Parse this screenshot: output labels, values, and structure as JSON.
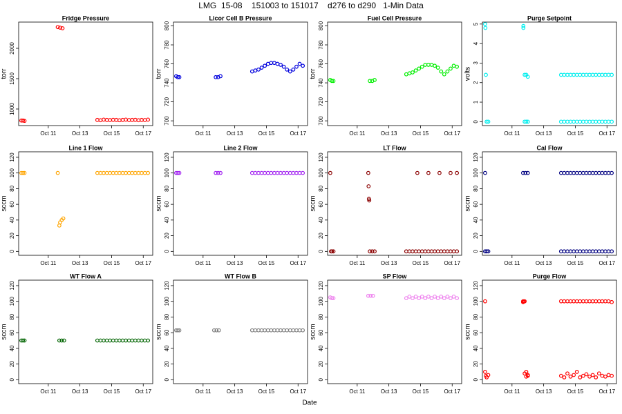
{
  "title": "LMG  15-08    151003 to 151017    d276 to d290   1-Min Data",
  "xlabel": "Date",
  "chart_data": [
    {
      "type": "scatter",
      "title": "Fridge Pressure",
      "ylabel": "torr",
      "color": "#ff0000",
      "xlim": [
        9.13,
        17.6
      ],
      "xticks": [
        {
          "value": 11,
          "label": "Oct 11"
        },
        {
          "value": 13,
          "label": "Oct 13"
        },
        {
          "value": 15,
          "label": "Oct 15"
        },
        {
          "value": 17,
          "label": "Oct 17"
        }
      ],
      "ylim": [
        727,
        2432
      ],
      "yticks": [
        1000,
        1500,
        2000
      ],
      "x": [
        9.3,
        9.4,
        9.5,
        11.6,
        11.75,
        11.9,
        14.1,
        14.3,
        14.5,
        14.7,
        14.9,
        15.1,
        15.3,
        15.5,
        15.7,
        15.9,
        16.1,
        16.3,
        16.5,
        16.7,
        16.9,
        17.1,
        17.3
      ],
      "values": [
        810,
        810,
        805,
        2350,
        2340,
        2330,
        820,
        815,
        825,
        820,
        818,
        822,
        820,
        815,
        820,
        825,
        818,
        820,
        822,
        815,
        820,
        818,
        825
      ]
    },
    {
      "type": "scatter",
      "title": "Licor Cell B Pressure",
      "ylabel": "torr",
      "color": "#0000dd",
      "xlim": [
        9.13,
        17.6
      ],
      "xticks": [
        {
          "value": 11,
          "label": "Oct 11"
        },
        {
          "value": 13,
          "label": "Oct 13"
        },
        {
          "value": 15,
          "label": "Oct 15"
        },
        {
          "value": 17,
          "label": "Oct 17"
        }
      ],
      "ylim": [
        695,
        804
      ],
      "yticks": [
        700,
        720,
        740,
        760,
        780,
        800
      ],
      "x": [
        9.3,
        9.4,
        9.5,
        11.8,
        11.95,
        12.1,
        14.1,
        14.3,
        14.5,
        14.7,
        14.9,
        15.1,
        15.3,
        15.5,
        15.7,
        15.9,
        16.1,
        16.3,
        16.5,
        16.7,
        16.9,
        17.1,
        17.3
      ],
      "values": [
        747,
        746,
        746,
        746,
        746,
        747,
        752,
        753,
        754,
        756,
        758,
        760,
        761,
        761,
        760,
        759,
        757,
        754,
        752,
        754,
        757,
        760,
        758
      ]
    },
    {
      "type": "scatter",
      "title": "Fuel Cell Pressure",
      "ylabel": "torr",
      "color": "#00ee00",
      "xlim": [
        9.13,
        17.6
      ],
      "xticks": [
        {
          "value": 11,
          "label": "Oct 11"
        },
        {
          "value": 13,
          "label": "Oct 13"
        },
        {
          "value": 15,
          "label": "Oct 15"
        },
        {
          "value": 17,
          "label": "Oct 17"
        }
      ],
      "ylim": [
        695,
        804
      ],
      "yticks": [
        700,
        720,
        740,
        760,
        780,
        800
      ],
      "x": [
        9.3,
        9.4,
        9.5,
        11.8,
        11.95,
        12.1,
        14.1,
        14.3,
        14.5,
        14.7,
        14.9,
        15.1,
        15.3,
        15.5,
        15.7,
        15.9,
        16.1,
        16.3,
        16.5,
        16.7,
        16.9,
        17.1,
        17.3
      ],
      "values": [
        743,
        742,
        742,
        742,
        742,
        743,
        749,
        750,
        751,
        753,
        755,
        757,
        759,
        759,
        759,
        758,
        756,
        752,
        749,
        752,
        755,
        758,
        757
      ]
    },
    {
      "type": "scatter",
      "title": "Purge Setpoint",
      "ylabel": "volts",
      "color": "#00eeee",
      "xlim": [
        9.13,
        17.6
      ],
      "xticks": [
        {
          "value": 11,
          "label": "Oct 11"
        },
        {
          "value": 13,
          "label": "Oct 13"
        },
        {
          "value": 15,
          "label": "Oct 15"
        },
        {
          "value": 17,
          "label": "Oct 17"
        }
      ],
      "ylim": [
        -0.2,
        5.1
      ],
      "yticks": [
        0,
        1,
        2,
        3,
        4,
        5
      ],
      "x": [
        9.3,
        9.32,
        9.35,
        9.4,
        9.5,
        11.72,
        11.72,
        11.8,
        11.9,
        12.0,
        11.8,
        11.9,
        12.0,
        14.1,
        14.3,
        14.5,
        14.7,
        14.9,
        15.1,
        15.3,
        15.5,
        15.7,
        15.9,
        16.1,
        16.3,
        16.5,
        16.7,
        16.9,
        17.1,
        17.3,
        14.1,
        14.3,
        14.5,
        14.7,
        14.9,
        15.1,
        15.3,
        15.5,
        15.7,
        15.9,
        16.1,
        16.3,
        16.5,
        16.7,
        16.9,
        17.1,
        17.3
      ],
      "values": [
        5,
        4.8,
        2.4,
        0,
        0,
        4.9,
        4.8,
        2.4,
        2.4,
        2.3,
        0,
        0,
        0,
        2.4,
        2.4,
        2.4,
        2.4,
        2.4,
        2.4,
        2.4,
        2.4,
        2.4,
        2.4,
        2.4,
        2.4,
        2.4,
        2.4,
        2.4,
        2.4,
        2.4,
        0,
        0,
        0,
        0,
        0,
        0,
        0,
        0,
        0,
        0,
        0,
        0,
        0,
        0,
        0,
        0,
        0
      ]
    },
    {
      "type": "scatter",
      "title": "Line 1 Flow",
      "ylabel": "sccm",
      "color": "#ffa500",
      "xlim": [
        9.13,
        17.6
      ],
      "xticks": [
        {
          "value": 11,
          "label": "Oct 11"
        },
        {
          "value": 13,
          "label": "Oct 13"
        },
        {
          "value": 15,
          "label": "Oct 15"
        },
        {
          "value": 17,
          "label": "Oct 17"
        }
      ],
      "ylim": [
        -5,
        127
      ],
      "yticks": [
        0,
        20,
        40,
        60,
        80,
        100,
        120
      ],
      "x": [
        9.3,
        9.4,
        9.5,
        11.6,
        11.7,
        11.75,
        11.85,
        11.95,
        14.1,
        14.3,
        14.5,
        14.7,
        14.9,
        15.1,
        15.3,
        15.5,
        15.7,
        15.9,
        16.1,
        16.3,
        16.5,
        16.7,
        16.9,
        17.1,
        17.3
      ],
      "values": [
        100,
        100,
        100,
        100,
        33,
        37,
        40,
        42,
        100,
        100,
        100,
        100,
        100,
        100,
        100,
        100,
        100,
        100,
        100,
        100,
        100,
        100,
        100,
        100,
        100
      ]
    },
    {
      "type": "scatter",
      "title": "Line 2 Flow",
      "ylabel": "sccm",
      "color": "#a020f0",
      "xlim": [
        9.13,
        17.6
      ],
      "xticks": [
        {
          "value": 11,
          "label": "Oct 11"
        },
        {
          "value": 13,
          "label": "Oct 13"
        },
        {
          "value": 15,
          "label": "Oct 15"
        },
        {
          "value": 17,
          "label": "Oct 17"
        }
      ],
      "ylim": [
        -5,
        127
      ],
      "yticks": [
        0,
        20,
        40,
        60,
        80,
        100,
        120
      ],
      "x": [
        9.3,
        9.4,
        9.5,
        11.8,
        11.95,
        12.1,
        14.1,
        14.3,
        14.5,
        14.7,
        14.9,
        15.1,
        15.3,
        15.5,
        15.7,
        15.9,
        16.1,
        16.3,
        16.5,
        16.7,
        16.9,
        17.1,
        17.3
      ],
      "values": [
        100,
        100,
        100,
        100,
        100,
        100,
        100,
        100,
        100,
        100,
        100,
        100,
        100,
        100,
        100,
        100,
        100,
        100,
        100,
        100,
        100,
        100,
        100
      ]
    },
    {
      "type": "scatter",
      "title": "LT Flow",
      "ylabel": "sccm",
      "color": "#8b0000",
      "xlim": [
        9.13,
        17.6
      ],
      "xticks": [
        {
          "value": 11,
          "label": "Oct 11"
        },
        {
          "value": 13,
          "label": "Oct 13"
        },
        {
          "value": 15,
          "label": "Oct 15"
        },
        {
          "value": 17,
          "label": "Oct 17"
        }
      ],
      "ylim": [
        -5,
        127
      ],
      "yticks": [
        0,
        20,
        40,
        60,
        80,
        100,
        120
      ],
      "x": [
        9.3,
        9.35,
        9.4,
        9.5,
        11.7,
        11.72,
        11.74,
        11.76,
        11.8,
        11.95,
        12.1,
        14.1,
        14.3,
        14.5,
        14.7,
        14.9,
        15.1,
        15.3,
        15.5,
        15.7,
        15.9,
        16.1,
        16.3,
        16.5,
        16.7,
        16.9,
        17.1,
        17.3,
        14.8,
        15.5,
        16.2,
        16.9,
        17.3
      ],
      "values": [
        100,
        0,
        0,
        0,
        100,
        83,
        67,
        65,
        0,
        0,
        0,
        0,
        0,
        0,
        0,
        0,
        0,
        0,
        0,
        0,
        0,
        0,
        0,
        0,
        0,
        0,
        0,
        0,
        100,
        100,
        100,
        100,
        100
      ]
    },
    {
      "type": "scatter",
      "title": "Cal Flow",
      "ylabel": "sccm",
      "color": "#000080",
      "xlim": [
        9.13,
        17.6
      ],
      "xticks": [
        {
          "value": 11,
          "label": "Oct 11"
        },
        {
          "value": 13,
          "label": "Oct 13"
        },
        {
          "value": 15,
          "label": "Oct 15"
        },
        {
          "value": 17,
          "label": "Oct 17"
        }
      ],
      "ylim": [
        -5,
        127
      ],
      "yticks": [
        0,
        20,
        40,
        60,
        80,
        100,
        120
      ],
      "x": [
        9.3,
        9.3,
        9.4,
        9.5,
        11.7,
        11.85,
        12.0,
        14.1,
        14.3,
        14.5,
        14.7,
        14.9,
        15.1,
        15.3,
        15.5,
        15.7,
        15.9,
        16.1,
        16.3,
        16.5,
        16.7,
        16.9,
        17.1,
        17.3,
        14.1,
        14.3,
        14.5,
        14.7,
        14.9,
        15.1,
        15.3,
        15.5,
        15.7,
        15.9,
        16.1,
        16.3,
        16.5,
        16.7,
        16.9,
        17.1,
        17.3
      ],
      "values": [
        100,
        0,
        0,
        0,
        100,
        100,
        100,
        100,
        100,
        100,
        100,
        100,
        100,
        100,
        100,
        100,
        100,
        100,
        100,
        100,
        100,
        100,
        100,
        100,
        0,
        0,
        0,
        0,
        0,
        0,
        0,
        0,
        0,
        0,
        0,
        0,
        0,
        0,
        0,
        0,
        0
      ]
    },
    {
      "type": "scatter",
      "title": "WT Flow A",
      "ylabel": "sccm",
      "color": "#006400",
      "xlim": [
        9.13,
        17.6
      ],
      "xticks": [
        {
          "value": 11,
          "label": "Oct 11"
        },
        {
          "value": 13,
          "label": "Oct 13"
        },
        {
          "value": 15,
          "label": "Oct 15"
        },
        {
          "value": 17,
          "label": "Oct 17"
        }
      ],
      "ylim": [
        -5,
        127
      ],
      "yticks": [
        0,
        20,
        40,
        60,
        80,
        100,
        120
      ],
      "x": [
        9.3,
        9.4,
        9.5,
        11.7,
        11.85,
        12.0,
        14.1,
        14.3,
        14.5,
        14.7,
        14.9,
        15.1,
        15.3,
        15.5,
        15.7,
        15.9,
        16.1,
        16.3,
        16.5,
        16.7,
        16.9,
        17.1,
        17.3
      ],
      "values": [
        50,
        50,
        50,
        50,
        50,
        50,
        50,
        50,
        50,
        50,
        50,
        50,
        50,
        50,
        50,
        50,
        50,
        50,
        50,
        50,
        50,
        50,
        50
      ]
    },
    {
      "type": "scatter",
      "title": "WT Flow B",
      "ylabel": "sccm",
      "color": "#808080",
      "xlim": [
        9.13,
        17.6
      ],
      "xticks": [
        {
          "value": 11,
          "label": "Oct 11"
        },
        {
          "value": 13,
          "label": "Oct 13"
        },
        {
          "value": 15,
          "label": "Oct 15"
        },
        {
          "value": 17,
          "label": "Oct 17"
        }
      ],
      "ylim": [
        -5,
        127
      ],
      "yticks": [
        0,
        20,
        40,
        60,
        80,
        100,
        120
      ],
      "x": [
        9.3,
        9.4,
        9.5,
        11.7,
        11.85,
        12.0,
        14.1,
        14.3,
        14.5,
        14.7,
        14.9,
        15.1,
        15.3,
        15.5,
        15.7,
        15.9,
        16.1,
        16.3,
        16.5,
        16.7,
        16.9,
        17.1,
        17.3
      ],
      "values": [
        63,
        63,
        63,
        63,
        63,
        63,
        63,
        63,
        63,
        63,
        63,
        63,
        63,
        63,
        63,
        63,
        63,
        63,
        63,
        63,
        63,
        63,
        63
      ]
    },
    {
      "type": "scatter",
      "title": "SP Flow",
      "ylabel": "sccm",
      "color": "#ee82ee",
      "xlim": [
        9.13,
        17.6
      ],
      "xticks": [
        {
          "value": 11,
          "label": "Oct 11"
        },
        {
          "value": 13,
          "label": "Oct 13"
        },
        {
          "value": 15,
          "label": "Oct 15"
        },
        {
          "value": 17,
          "label": "Oct 17"
        }
      ],
      "ylim": [
        -5,
        127
      ],
      "yticks": [
        0,
        20,
        40,
        60,
        80,
        100,
        120
      ],
      "x": [
        9.3,
        9.4,
        9.5,
        11.7,
        11.85,
        12.0,
        14.1,
        14.3,
        14.5,
        14.7,
        14.9,
        15.1,
        15.3,
        15.5,
        15.7,
        15.9,
        16.1,
        16.3,
        16.5,
        16.7,
        16.9,
        17.1,
        17.3
      ],
      "values": [
        105,
        104,
        104,
        107,
        107,
        107,
        104,
        106,
        104,
        106,
        104,
        106,
        104,
        106,
        104,
        106,
        104,
        106,
        104,
        106,
        104,
        106,
        104
      ]
    },
    {
      "type": "scatter",
      "title": "Purge Flow",
      "ylabel": "sccm",
      "color": "#ff0000",
      "xlim": [
        9.13,
        17.6
      ],
      "xticks": [
        {
          "value": 11,
          "label": "Oct 11"
        },
        {
          "value": 13,
          "label": "Oct 13"
        },
        {
          "value": 15,
          "label": "Oct 15"
        },
        {
          "value": 17,
          "label": "Oct 17"
        }
      ],
      "ylim": [
        -5,
        127
      ],
      "yticks": [
        0,
        20,
        40,
        60,
        80,
        100,
        120
      ],
      "x": [
        9.3,
        9.3,
        9.35,
        9.4,
        9.5,
        11.7,
        11.75,
        11.8,
        11.9,
        12.0,
        11.7,
        11.8,
        11.9,
        12.0,
        14.1,
        14.3,
        14.5,
        14.7,
        14.9,
        15.1,
        15.3,
        15.5,
        15.7,
        15.9,
        16.1,
        16.3,
        16.5,
        16.7,
        16.9,
        17.1,
        17.3,
        14.1,
        14.3,
        14.5,
        14.7,
        14.9,
        15.1,
        15.3,
        15.5,
        15.7,
        15.9,
        16.1,
        16.3,
        16.5,
        16.7,
        16.9,
        17.1,
        17.3
      ],
      "values": [
        100,
        10,
        5,
        3,
        6,
        100,
        100,
        100,
        10,
        6,
        99,
        8,
        4,
        5,
        100,
        100,
        100,
        100,
        100,
        100,
        100,
        100,
        100,
        100,
        100,
        100,
        100,
        100,
        100,
        100,
        99,
        5,
        3,
        8,
        4,
        6,
        10,
        3,
        5,
        7,
        4,
        6,
        3,
        8,
        5,
        4,
        6,
        5
      ]
    }
  ]
}
